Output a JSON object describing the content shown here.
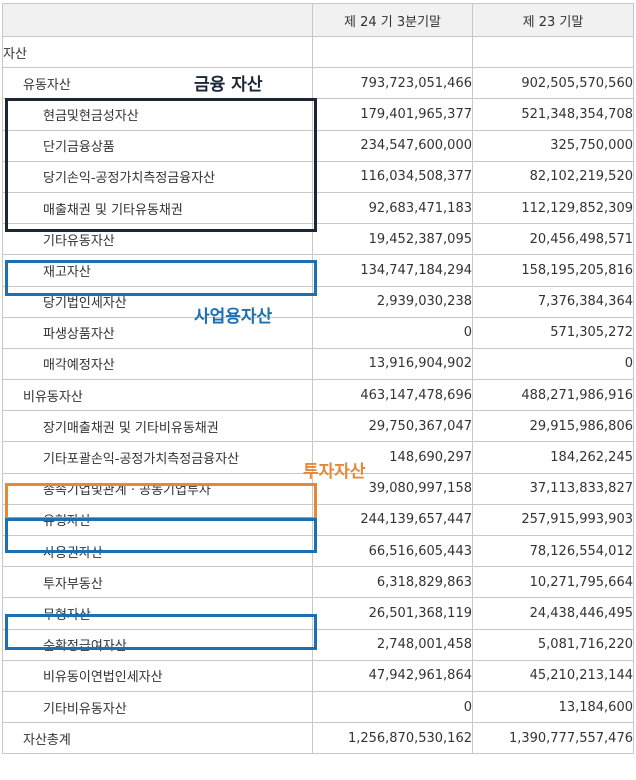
{
  "columns": [
    "",
    "제 24 기 3분기말",
    "제 23 기말"
  ],
  "rows": [
    {
      "label": "자산",
      "cur": "",
      "prev": ""
    },
    {
      "label": "유동자산",
      "cur": "793,723,051,466",
      "prev": "902,505,570,560"
    },
    {
      "label": "현금및현금성자산",
      "cur": "179,401,965,377",
      "prev": "521,348,354,708"
    },
    {
      "label": "단기금융상품",
      "cur": "234,547,600,000",
      "prev": "325,750,000"
    },
    {
      "label": "당기손익-공정가치측정금융자산",
      "cur": "116,034,508,377",
      "prev": "82,102,219,520"
    },
    {
      "label": "매출채권 및 기타유동채권",
      "cur": "92,683,471,183",
      "prev": "112,129,852,309"
    },
    {
      "label": "기타유동자산",
      "cur": "19,452,387,095",
      "prev": "20,456,498,571"
    },
    {
      "label": "재고자산",
      "cur": "134,747,184,294",
      "prev": "158,195,205,816"
    },
    {
      "label": "당기법인세자산",
      "cur": "2,939,030,238",
      "prev": "7,376,384,364"
    },
    {
      "label": "파생상품자산",
      "cur": "0",
      "prev": "571,305,272"
    },
    {
      "label": "매각예정자산",
      "cur": "13,916,904,902",
      "prev": "0"
    },
    {
      "label": "비유동자산",
      "cur": "463,147,478,696",
      "prev": "488,271,986,916"
    },
    {
      "label": "장기매출채권 및 기타비유동채권",
      "cur": "29,750,367,047",
      "prev": "29,915,986,806"
    },
    {
      "label": "기타포괄손익-공정가치측정금융자산",
      "cur": "148,690,297",
      "prev": "184,262,245"
    },
    {
      "label": "종속기업및관계 · 공동기업투자",
      "cur": "39,080,997,158",
      "prev": "37,113,833,827"
    },
    {
      "label": "유형자산",
      "cur": "244,139,657,447",
      "prev": "257,915,993,903"
    },
    {
      "label": "사용권자산",
      "cur": "66,516,605,443",
      "prev": "78,126,554,012"
    },
    {
      "label": "투자부동산",
      "cur": "6,318,829,863",
      "prev": "10,271,795,664"
    },
    {
      "label": "무형자산",
      "cur": "26,501,368,119",
      "prev": "24,438,446,495"
    },
    {
      "label": "순확정급여자산",
      "cur": "2,748,001,458",
      "prev": "5,081,716,220"
    },
    {
      "label": "비유동이연법인세자산",
      "cur": "47,942,961,864",
      "prev": "45,210,213,144"
    },
    {
      "label": "기타비유동자산",
      "cur": "0",
      "prev": "13,184,600"
    },
    {
      "label": "자산총계",
      "cur": "1,256,870,530,162",
      "prev": "1,390,777,557,476"
    }
  ],
  "annotations": {
    "financial": "금융 자산",
    "business": "사업용자산",
    "investment": "투자자산"
  },
  "colors": {
    "financial": "#1b2636",
    "business": "#1d6fb3",
    "investment": "#e6883a"
  }
}
